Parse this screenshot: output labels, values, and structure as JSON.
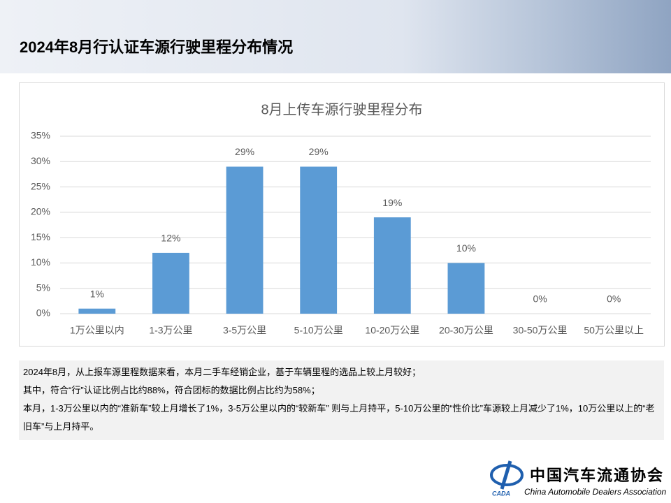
{
  "header": {
    "title": "2024年8月行认证车源行驶里程分布情况"
  },
  "chart_data": {
    "type": "bar",
    "title": "8月上传车源行驶里程分布",
    "categories": [
      "1万公里以内",
      "1-3万公里",
      "3-5万公里",
      "5-10万公里",
      "10-20万公里",
      "20-30万公里",
      "30-50万公里",
      "50万公里以上"
    ],
    "values": [
      1,
      12,
      29,
      29,
      19,
      10,
      0,
      0
    ],
    "value_labels": [
      "1%",
      "12%",
      "29%",
      "29%",
      "19%",
      "10%",
      "0%",
      "0%"
    ],
    "color": "#5b9bd5",
    "ylim": [
      0,
      35
    ],
    "yticks": [
      {
        "value": 0,
        "label": "0%"
      },
      {
        "value": 5,
        "label": "5%"
      },
      {
        "value": 10,
        "label": "10%"
      },
      {
        "value": 15,
        "label": "15%"
      },
      {
        "value": 20,
        "label": "20%"
      },
      {
        "value": 25,
        "label": "25%"
      },
      {
        "value": 30,
        "label": "30%"
      },
      {
        "value": 35,
        "label": "35%"
      }
    ],
    "grid": true
  },
  "notes": [
    "2024年8月，从上报车源里程数据来看，本月二手车经销企业，基于车辆里程的选品上较上月较好；",
    "其中，符合“行”认证比例占比约88%，符合团标的数据比例占比约为58%；",
    "本月，1-3万公里以内的“准新车”较上月增长了1%，3-5万公里以内的“较新车” 则与上月持平，5-10万公里的“性价比”车源较上月减少了1%，10万公里以上的“老旧车”与上月持平。"
  ],
  "logo": {
    "abbr": "CADA",
    "name": "中国汽车流通协会",
    "english": "China Automobile Dealers Association"
  }
}
